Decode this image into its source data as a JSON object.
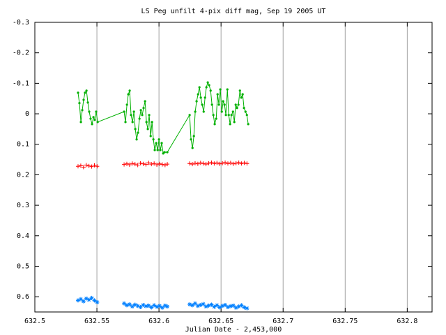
{
  "chart_data": {
    "type": "scatter",
    "title": "LS Peg unfilt 4-pix diff mag, Sep 19 2005 UT",
    "xlabel": "Julian Date - 2,453,000",
    "xlim": [
      632.5,
      632.82
    ],
    "xticks": [
      632.5,
      632.55,
      632.6,
      632.65,
      632.7,
      632.75,
      632.8
    ],
    "ylim": [
      -0.3,
      0.65
    ],
    "y_inverted": true,
    "yticks": [
      -0.3,
      -0.2,
      -0.1,
      0,
      0.1,
      0.2,
      0.3,
      0.4,
      0.5,
      0.6
    ],
    "grid": "x",
    "series": [
      {
        "color": "#00b000",
        "marker": "dot",
        "line": true,
        "x": [
          632.5348,
          632.5359,
          632.5371,
          632.5382,
          632.5393,
          632.5404,
          632.5416,
          632.5427,
          632.5438,
          632.5449,
          632.5461,
          632.5472,
          632.5483,
          632.5494,
          632.5506,
          632.5719,
          632.573,
          632.5742,
          632.5753,
          632.5764,
          632.5775,
          632.5787,
          632.5798,
          632.5809,
          632.582,
          632.5831,
          632.5843,
          632.5854,
          632.5865,
          632.5876,
          632.5888,
          632.5899,
          632.591,
          632.5921,
          632.5933,
          632.5944,
          632.5955,
          632.5966,
          632.5978,
          632.5989,
          632.6,
          632.6011,
          632.6022,
          632.6034,
          632.6045,
          632.6067,
          632.6247,
          632.6258,
          632.627,
          632.6281,
          632.6292,
          632.6303,
          632.6315,
          632.6326,
          632.6337,
          632.6348,
          632.636,
          632.6371,
          632.6382,
          632.6393,
          632.6404,
          632.6416,
          632.6427,
          632.6438,
          632.6449,
          632.6461,
          632.6472,
          632.6483,
          632.6494,
          632.6506,
          632.6517,
          632.6528,
          632.6539,
          632.6551,
          632.6562,
          632.6573,
          632.6584,
          632.6596,
          632.6607,
          632.6618,
          632.6629,
          632.664,
          632.6652,
          632.6663,
          632.6674,
          632.6685,
          632.6697,
          632.6708,
          632.6719
        ],
        "values": [
          -0.069,
          -0.035,
          0.027,
          -0.012,
          -0.046,
          -0.069,
          -0.076,
          -0.037,
          -0.007,
          0.016,
          0.034,
          0.011,
          0.02,
          -0.007,
          0.027,
          -0.007,
          0.027,
          -0.03,
          -0.064,
          -0.076,
          0.004,
          0.027,
          -0.007,
          0.05,
          0.084,
          0.062,
          0.016,
          -0.012,
          0.004,
          -0.019,
          -0.041,
          0.027,
          0.05,
          0.004,
          0.073,
          0.027,
          0.084,
          0.119,
          0.096,
          0.119,
          0.084,
          0.119,
          0.096,
          0.13,
          0.126,
          0.126,
          0.004,
          0.084,
          0.112,
          0.073,
          -0.007,
          -0.041,
          -0.064,
          -0.087,
          -0.053,
          -0.03,
          -0.007,
          -0.053,
          -0.087,
          -0.103,
          -0.094,
          -0.076,
          -0.03,
          0.004,
          0.034,
          0.016,
          -0.064,
          -0.03,
          -0.08,
          -0.007,
          -0.041,
          -0.03,
          0.004,
          -0.08,
          0.004,
          0.034,
          0.004,
          -0.007,
          0.027,
          -0.03,
          -0.019,
          -0.03,
          -0.076,
          -0.053,
          -0.064,
          -0.019,
          -0.007,
          0.004,
          0.034
        ]
      },
      {
        "color": "#ff0000",
        "marker": "plus",
        "line": false,
        "x": [
          632.5348,
          632.537,
          632.5392,
          632.5414,
          632.5436,
          632.5458,
          632.548,
          632.5502,
          632.5719,
          632.5741,
          632.5763,
          632.5785,
          632.5807,
          632.5829,
          632.5851,
          632.5873,
          632.5895,
          632.5917,
          632.5939,
          632.5961,
          632.5983,
          632.6005,
          632.6027,
          632.6049,
          632.6067,
          632.6247,
          632.6269,
          632.6291,
          632.6313,
          632.6335,
          632.6357,
          632.6379,
          632.6401,
          632.6423,
          632.6445,
          632.6467,
          632.6489,
          632.6511,
          632.6533,
          632.6555,
          632.6577,
          632.6599,
          632.6621,
          632.6643,
          632.6665,
          632.6687,
          632.6709
        ],
        "values": [
          0.172,
          0.17,
          0.175,
          0.168,
          0.171,
          0.173,
          0.169,
          0.172,
          0.166,
          0.164,
          0.167,
          0.163,
          0.165,
          0.168,
          0.162,
          0.164,
          0.166,
          0.161,
          0.165,
          0.163,
          0.167,
          0.164,
          0.166,
          0.168,
          0.165,
          0.163,
          0.165,
          0.162,
          0.164,
          0.161,
          0.163,
          0.165,
          0.162,
          0.16,
          0.163,
          0.161,
          0.164,
          0.162,
          0.16,
          0.163,
          0.161,
          0.164,
          0.162,
          0.16,
          0.163,
          0.161,
          0.163
        ]
      },
      {
        "color": "#0080ff",
        "marker": "star",
        "line": false,
        "x": [
          632.5348,
          632.537,
          632.5392,
          632.5414,
          632.5436,
          632.5458,
          632.548,
          632.5502,
          632.5719,
          632.5741,
          632.5763,
          632.5785,
          632.5807,
          632.5829,
          632.5851,
          632.5873,
          632.5895,
          632.5917,
          632.5939,
          632.5961,
          632.5983,
          632.6005,
          632.6027,
          632.6049,
          632.6067,
          632.6247,
          632.6269,
          632.6291,
          632.6313,
          632.6335,
          632.6357,
          632.6379,
          632.6401,
          632.6423,
          632.6445,
          632.6467,
          632.6489,
          632.6511,
          632.6533,
          632.6555,
          632.6577,
          632.6599,
          632.6621,
          632.6643,
          632.6665,
          632.6687,
          632.6709
        ],
        "values": [
          0.612,
          0.608,
          0.615,
          0.606,
          0.61,
          0.604,
          0.612,
          0.618,
          0.622,
          0.628,
          0.625,
          0.632,
          0.626,
          0.63,
          0.634,
          0.627,
          0.631,
          0.629,
          0.635,
          0.628,
          0.633,
          0.63,
          0.636,
          0.629,
          0.632,
          0.625,
          0.628,
          0.622,
          0.63,
          0.627,
          0.624,
          0.632,
          0.629,
          0.626,
          0.633,
          0.628,
          0.635,
          0.63,
          0.627,
          0.634,
          0.631,
          0.629,
          0.636,
          0.632,
          0.628,
          0.635,
          0.638
        ]
      }
    ]
  }
}
